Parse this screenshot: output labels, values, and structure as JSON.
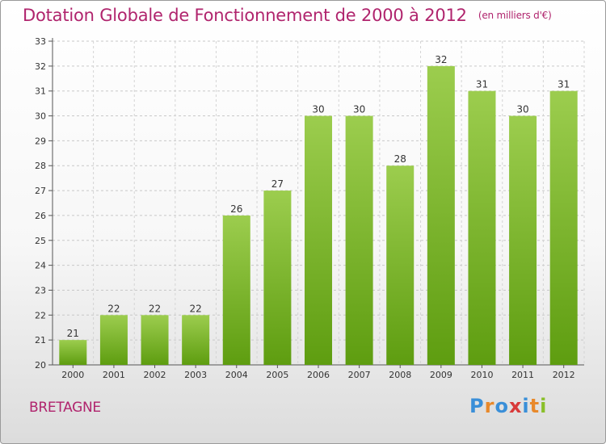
{
  "header": {
    "title": "Dotation Globale de Fonctionnement de 2000 à 2012",
    "unit": "(en milliers d'€)"
  },
  "footer": {
    "region": "BRETAGNE",
    "logo": [
      "P",
      "r",
      "o",
      "x",
      "i",
      "t",
      "i"
    ]
  },
  "colors": {
    "title": "#b0246d",
    "bar_top": "#9ccd4e",
    "bar_bottom": "#5e9d10",
    "logo": [
      "#3a8fd8",
      "#e8892b",
      "#3a8fd8",
      "#d83a3a",
      "#3a8fd8",
      "#e8892b",
      "#8abf2a"
    ]
  },
  "chart_data": {
    "type": "bar",
    "title": "Dotation Globale de Fonctionnement de 2000 à 2012",
    "subtitle": "(en milliers d'€)",
    "categories": [
      "2000",
      "2001",
      "2002",
      "2003",
      "2004",
      "2005",
      "2006",
      "2007",
      "2008",
      "2009",
      "2010",
      "2011",
      "2012"
    ],
    "values": [
      21,
      22,
      22,
      22,
      26,
      27,
      30,
      30,
      28,
      32,
      31,
      30,
      31
    ],
    "ylim": [
      20,
      33
    ],
    "yticks": [
      20,
      21,
      22,
      23,
      24,
      25,
      26,
      27,
      28,
      29,
      30,
      31,
      32,
      33
    ],
    "grid": true,
    "data_labels": true
  }
}
